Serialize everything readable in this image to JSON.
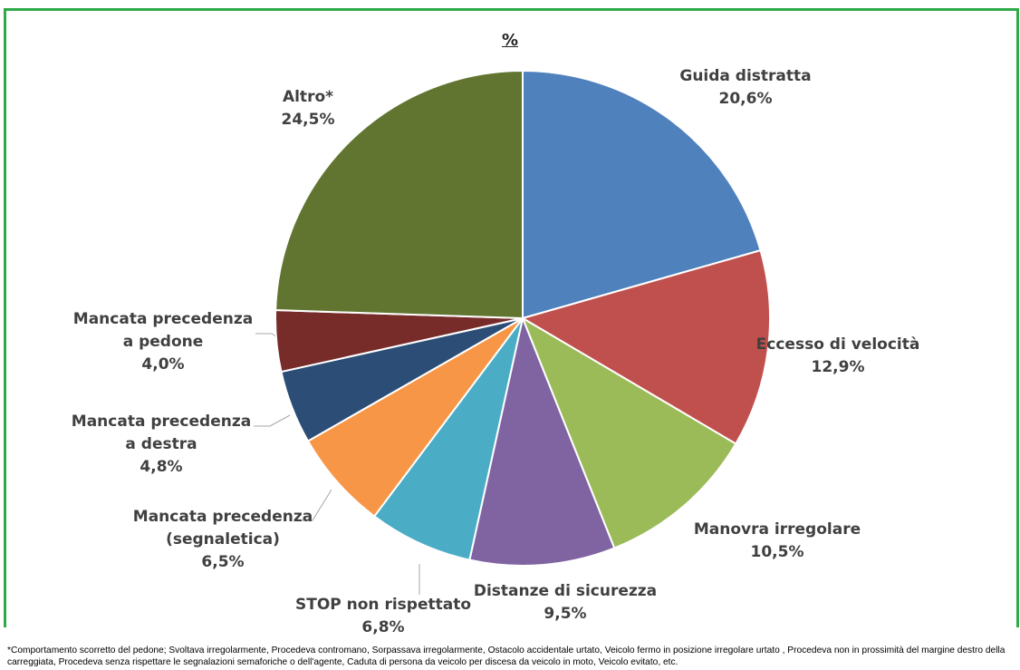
{
  "chart_data": {
    "type": "pie",
    "title": "%",
    "categories": [
      "Guida distratta",
      "Eccesso di velocità",
      "Manovra irregolare",
      "Distanze di sicurezza",
      "STOP non rispettato",
      "Mancata precedenza (segnaletica)",
      "Mancata precedenza a destra",
      "Mancata precedenza a pedone",
      "Altro*"
    ],
    "values": [
      20.6,
      12.9,
      10.5,
      9.5,
      6.8,
      6.5,
      4.8,
      4.0,
      24.5
    ],
    "value_labels": [
      "20,6%",
      "12,9%",
      "10,5%",
      "9,5%",
      "6,8%",
      "6,5%",
      "4,8%",
      "4,0%",
      "24,5%"
    ],
    "colors": [
      "#4f81bd",
      "#c0504d",
      "#9bbb59",
      "#8064a2",
      "#4bacc6",
      "#f79646",
      "#2c4d75",
      "#772c2a",
      "#617530"
    ],
    "footnote": "*Comportamento scorretto del pedone; Svoltava irregolarmente, Procedeva contromano, Sorpassava irregolarmente, Ostacolo accidentale urtato, Veicolo fermo in posizione irregolare urtato , Procedeva non in prossimità del margine destro della carreggiata, Procedeva senza rispettare le segnalazioni semaforiche o dell'agente, Caduta di persona da veicolo per discesa da veicolo in moto, Veicolo evitato, etc."
  }
}
